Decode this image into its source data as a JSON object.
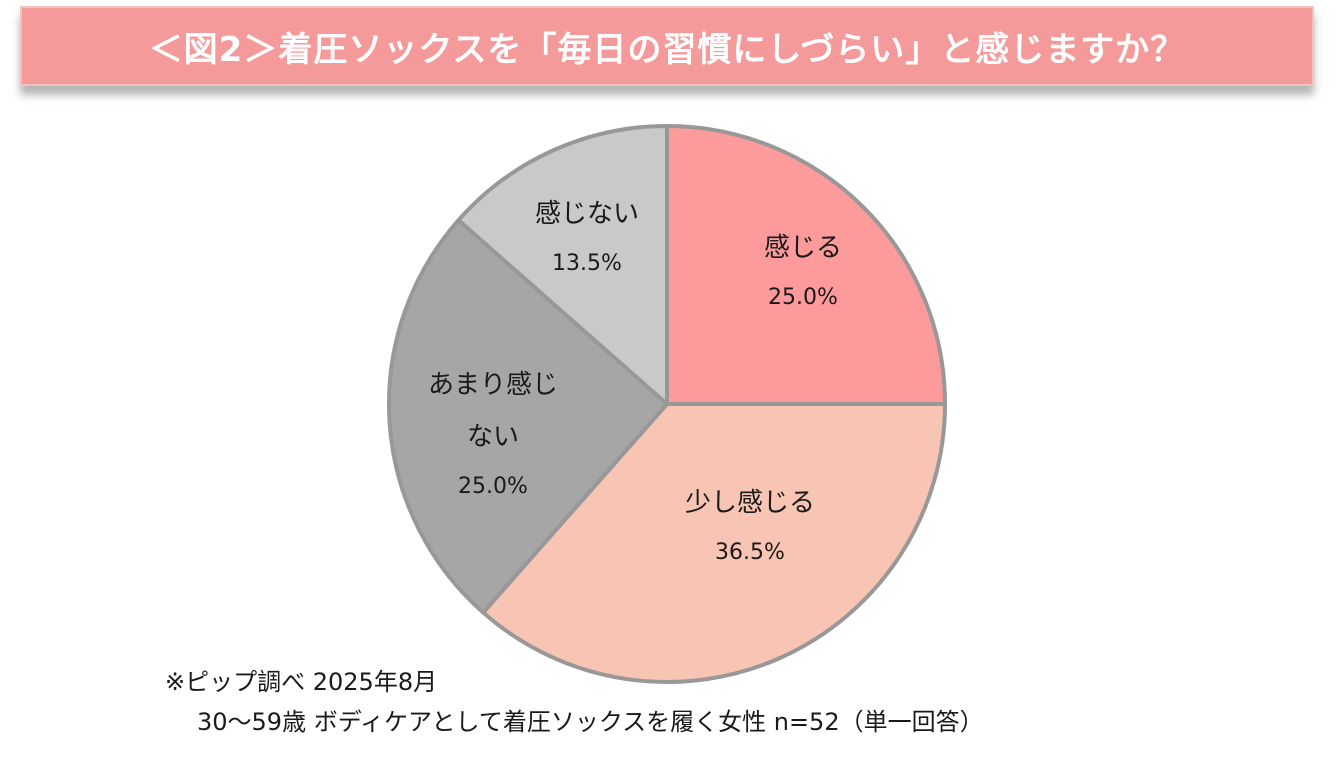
{
  "title": "＜図2＞着圧ソックスを「毎日の習慣にしづらい」と感じますか？",
  "chart_data": {
    "type": "pie",
    "slices": [
      {
        "label_lines": [
          "感じる"
        ],
        "value": 25.0,
        "value_label": "25.0%",
        "color": "#fd9a9b"
      },
      {
        "label_lines": [
          "少し感じる"
        ],
        "value": 36.5,
        "value_label": "36.5%",
        "color": "#f8c4b4"
      },
      {
        "label_lines": [
          "あまり感じ",
          "ない"
        ],
        "value": 25.0,
        "value_label": "25.0%",
        "color": "#a6a6a6"
      },
      {
        "label_lines": [
          "感じない"
        ],
        "value": 13.5,
        "value_label": "13.5%",
        "color": "#c9c9c9"
      }
    ],
    "start": "12 o'clock",
    "direction": "clockwise",
    "border_color": "#989898"
  },
  "footnote": {
    "line1": "※ピップ調べ  2025年8月",
    "line2": "30〜59歳 ボディケアとして着圧ソックスを履く女性 n=52（単一回答）"
  }
}
